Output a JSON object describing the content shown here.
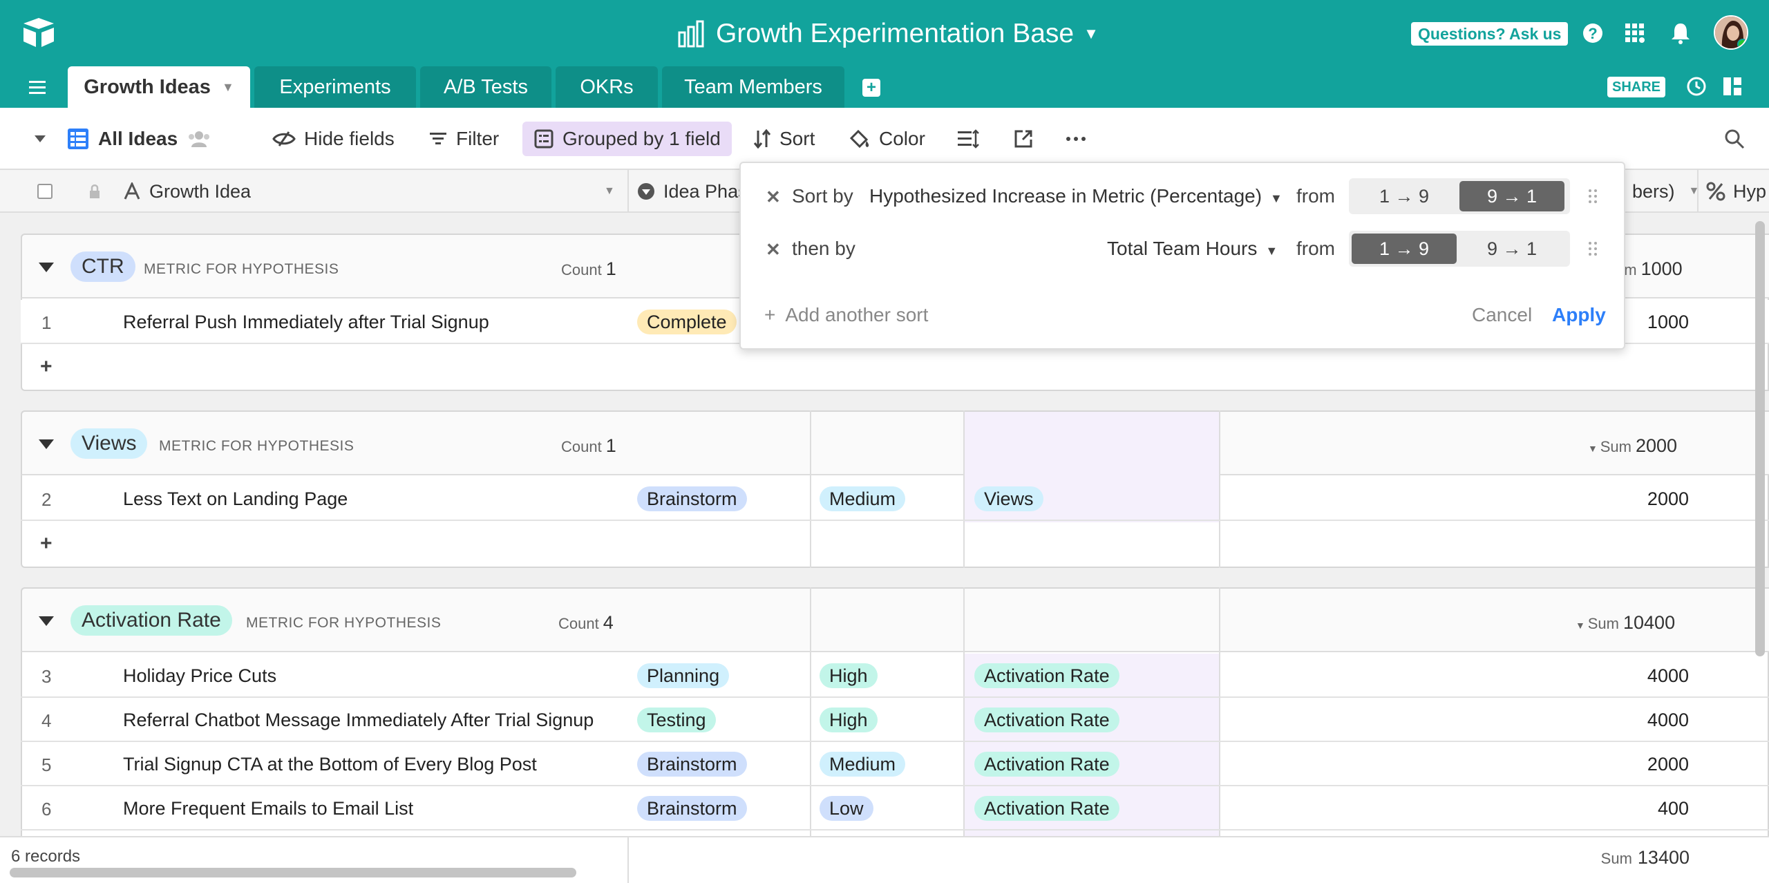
{
  "header": {
    "base_title": "Growth Experimentation Base",
    "questions_label": "Questions? Ask us",
    "share_label": "SHARE",
    "colors": {
      "teal": "#12a39c"
    }
  },
  "tabs": [
    {
      "label": "Growth Ideas",
      "active": true
    },
    {
      "label": "Experiments"
    },
    {
      "label": "A/B Tests"
    },
    {
      "label": "OKRs"
    },
    {
      "label": "Team Members"
    }
  ],
  "toolbar": {
    "view_name": "All Ideas",
    "hide_fields": "Hide fields",
    "filter": "Filter",
    "grouped": "Grouped by 1 field",
    "sort": "Sort",
    "color": "Color"
  },
  "columns": {
    "primary": "Growth Idea",
    "phase": "Idea Phas",
    "numbers_partial": "bers)",
    "hyp_partial": "Hyp"
  },
  "groups": [
    {
      "name": "CTR",
      "color": "#cfdffc",
      "meta": "METRIC FOR HYPOTHESIS",
      "count_label": "Count",
      "count": "1",
      "sum_label": "Sum",
      "sum": "1000"
    },
    {
      "name": "Views",
      "color": "#d0f0fd",
      "meta": "METRIC FOR HYPOTHESIS",
      "count_label": "Count",
      "count": "1",
      "sum_label": "Sum",
      "sum": "2000"
    },
    {
      "name": "Activation Rate",
      "color": "#c2f5e9",
      "meta": "METRIC FOR HYPOTHESIS",
      "count_label": "Count",
      "count": "4",
      "sum_label": "Sum",
      "sum": "10400"
    }
  ],
  "rows": [
    {
      "num": "1",
      "name": "Referral Push Immediately after Trial Signup",
      "phase": "Complete",
      "phase_color": "#ffeab6",
      "value": "1000"
    },
    {
      "num": "2",
      "name": "Less Text on Landing Page",
      "phase": "Brainstorm",
      "phase_color": "#cfdffc",
      "priority": "Medium",
      "priority_color": "#d0f0fd",
      "metric": "Views",
      "metric_color": "#d0f0fd",
      "value": "2000"
    },
    {
      "num": "3",
      "name": "Holiday Price Cuts",
      "phase": "Planning",
      "phase_color": "#d0f0fd",
      "priority": "High",
      "priority_color": "#c2f5e9",
      "metric": "Activation Rate",
      "metric_color": "#c2f5e9",
      "value": "4000"
    },
    {
      "num": "4",
      "name": "Referral Chatbot Message Immediately After Trial Signup",
      "phase": "Testing",
      "phase_color": "#c2f5e9",
      "priority": "High",
      "priority_color": "#c2f5e9",
      "metric": "Activation Rate",
      "metric_color": "#c2f5e9",
      "value": "4000"
    },
    {
      "num": "5",
      "name": "Trial Signup CTA at the Bottom of Every Blog Post",
      "phase": "Brainstorm",
      "phase_color": "#cfdffc",
      "priority": "Medium",
      "priority_color": "#d0f0fd",
      "metric": "Activation Rate",
      "metric_color": "#c2f5e9",
      "value": "2000"
    },
    {
      "num": "6",
      "name": "More Frequent Emails to Email List",
      "phase": "Brainstorm",
      "phase_color": "#cfdffc",
      "priority": "Low",
      "priority_color": "#cfdffc",
      "metric": "Activation Rate",
      "metric_color": "#c2f5e9",
      "value": "400"
    }
  ],
  "add_row": "+",
  "footer": {
    "records": "6 records",
    "sum_label": "Sum",
    "sum": "13400"
  },
  "sort_popup": {
    "sort_by_label": "Sort by",
    "then_by_label": "then by",
    "field1": "Hypothesized Increase in Metric (Percentage)",
    "field2": "Total Team Hours",
    "from_label": "from",
    "asc": "1 → 9",
    "desc": "9 → 1",
    "sort1_direction": "desc",
    "sort2_direction": "asc",
    "add_another": "Add another sort",
    "cancel": "Cancel",
    "apply": "Apply"
  }
}
